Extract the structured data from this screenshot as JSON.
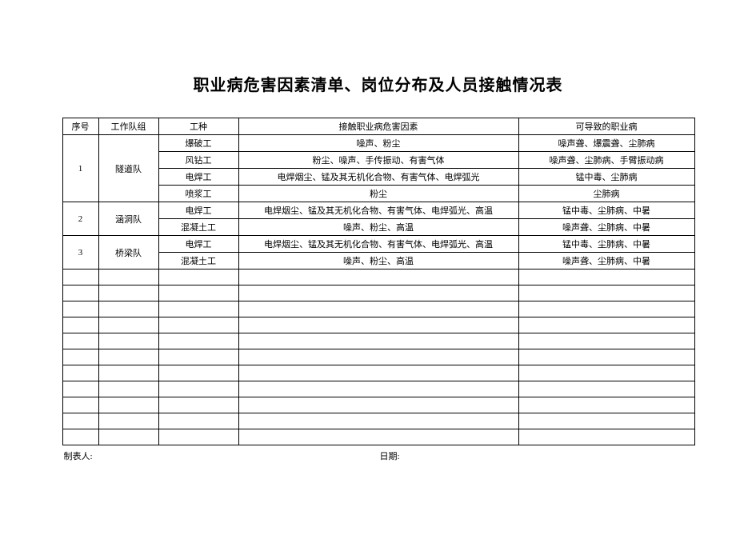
{
  "title": "职业病危害因素清单、岗位分布及人员接触情况表",
  "table": {
    "headers": {
      "seq": "序号",
      "team": "工作队组",
      "workType": "工种",
      "factor": "接触职业病危害因素",
      "disease": "可导致的职业病"
    },
    "col_widths": {
      "seq": 45,
      "team": 75,
      "workType": 100,
      "factor": 350,
      "disease": 220
    },
    "groups": [
      {
        "seq": "1",
        "team": "隧道队",
        "rows": [
          {
            "workType": "爆破工",
            "factor": "噪声、粉尘",
            "disease": "噪声聋、爆震聋、尘肺病"
          },
          {
            "workType": "风钻工",
            "factor": "粉尘、噪声、手传振动、有害气体",
            "disease": "噪声聋、尘肺病、手臂振动病"
          },
          {
            "workType": "电焊工",
            "factor": "电焊烟尘、锰及其无机化合物、有害气体、电焊弧光",
            "disease": "锰中毒、尘肺病"
          },
          {
            "workType": "喷浆工",
            "factor": "粉尘",
            "disease": "尘肺病"
          }
        ]
      },
      {
        "seq": "2",
        "team": "涵洞队",
        "rows": [
          {
            "workType": "电焊工",
            "factor": "电焊烟尘、锰及其无机化合物、有害气体、电焊弧光、高温",
            "disease": "锰中毒、尘肺病、中暑"
          },
          {
            "workType": "混凝土工",
            "factor": "噪声、粉尘、高温",
            "disease": "噪声聋、尘肺病、中暑"
          }
        ]
      },
      {
        "seq": "3",
        "team": "桥梁队",
        "rows": [
          {
            "workType": "电焊工",
            "factor": "电焊烟尘、锰及其无机化合物、有害气体、电焊弧光、高温",
            "disease": "锰中毒、尘肺病、中暑"
          },
          {
            "workType": "混凝土工",
            "factor": "噪声、粉尘、高温",
            "disease": "噪声聋、尘肺病、中暑"
          }
        ]
      }
    ],
    "empty_rows": 11,
    "colors": {
      "border": "#000000",
      "text": "#000000",
      "background": "#ffffff"
    },
    "font_sizes": {
      "title": 20,
      "cell": 11,
      "footer": 11
    }
  },
  "footer": {
    "preparer_label": "制表人:",
    "date_label": "日期:"
  }
}
